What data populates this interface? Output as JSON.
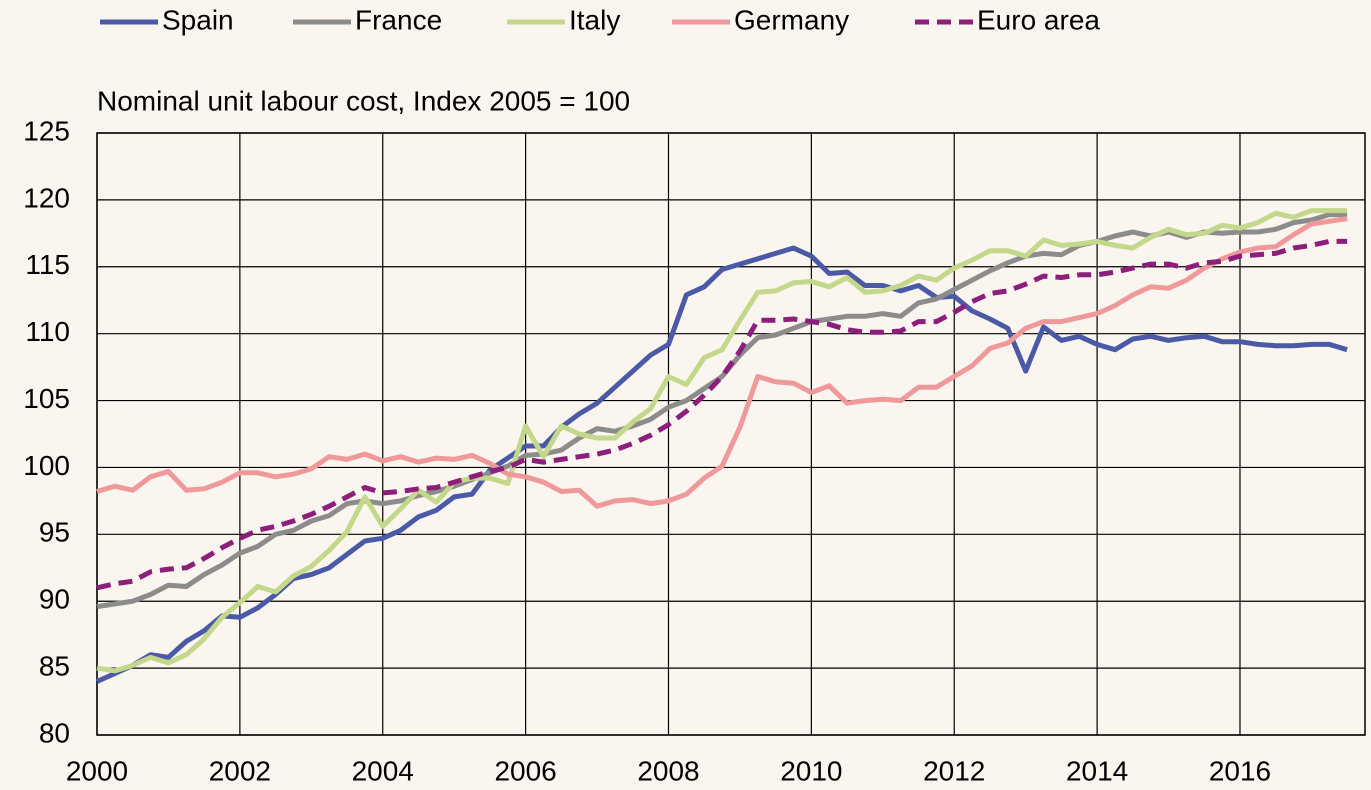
{
  "chart_data": {
    "type": "line",
    "y_axis_label": "Nominal unit labour cost, Index 2005 = 100",
    "x": [
      2000,
      2000.25,
      2000.5,
      2000.75,
      2001,
      2001.25,
      2001.5,
      2001.75,
      2002,
      2002.25,
      2002.5,
      2002.75,
      2003,
      2003.25,
      2003.5,
      2003.75,
      2004,
      2004.25,
      2004.5,
      2004.75,
      2005,
      2005.25,
      2005.5,
      2005.75,
      2006,
      2006.25,
      2006.5,
      2006.75,
      2007,
      2007.25,
      2007.5,
      2007.75,
      2008,
      2008.25,
      2008.5,
      2008.75,
      2009,
      2009.25,
      2009.5,
      2009.75,
      2010,
      2010.25,
      2010.5,
      2010.75,
      2011,
      2011.25,
      2011.5,
      2011.75,
      2012,
      2012.25,
      2012.5,
      2012.75,
      2013,
      2013.25,
      2013.5,
      2013.75,
      2014,
      2014.25,
      2014.5,
      2014.75,
      2015,
      2015.25,
      2015.5,
      2015.75,
      2016,
      2016.25,
      2016.5,
      2016.75,
      2017,
      2017.25,
      2017.5
    ],
    "series": [
      {
        "name": "Spain",
        "color": "#4b5aa6",
        "dashed": false,
        "values": [
          84.0,
          84.6,
          85.2,
          86.0,
          85.8,
          87.0,
          87.8,
          88.9,
          88.8,
          89.5,
          90.5,
          91.7,
          92.0,
          92.5,
          93.5,
          94.5,
          94.7,
          95.3,
          96.3,
          96.8,
          97.8,
          98.0,
          99.8,
          100.7,
          101.6,
          101.6,
          103.0,
          104.0,
          104.8,
          106.0,
          107.2,
          108.4,
          109.2,
          112.9,
          113.5,
          114.8,
          115.2,
          115.6,
          116.0,
          116.4,
          115.8,
          114.5,
          114.6,
          113.6,
          113.6,
          113.2,
          113.6,
          112.7,
          112.8,
          111.7,
          111.1,
          110.4,
          107.2,
          110.5,
          109.5,
          109.8,
          109.2,
          108.8,
          109.6,
          109.8,
          109.5,
          109.7,
          109.8,
          109.4,
          109.4,
          109.2,
          109.1,
          109.1,
          109.2,
          109.2,
          108.8
        ]
      },
      {
        "name": "France",
        "color": "#8c8c8c",
        "dashed": false,
        "values": [
          89.6,
          89.8,
          90.0,
          90.5,
          91.2,
          91.1,
          92.0,
          92.7,
          93.6,
          94.1,
          95.0,
          95.3,
          96.0,
          96.4,
          97.3,
          97.5,
          97.3,
          97.5,
          97.9,
          98.2,
          98.6,
          99.1,
          99.6,
          100.1,
          100.9,
          101.0,
          101.3,
          102.2,
          102.9,
          102.7,
          103.1,
          103.6,
          104.5,
          105.0,
          105.9,
          106.8,
          108.4,
          109.7,
          109.9,
          110.4,
          110.9,
          111.1,
          111.3,
          111.3,
          111.5,
          111.3,
          112.3,
          112.6,
          113.3,
          114.0,
          114.7,
          115.3,
          115.8,
          116.0,
          115.9,
          116.6,
          116.9,
          117.3,
          117.6,
          117.3,
          117.6,
          117.2,
          117.6,
          117.5,
          117.6,
          117.6,
          117.8,
          118.3,
          118.5,
          118.9,
          118.9
        ]
      },
      {
        "name": "Italy",
        "color": "#c3d88a",
        "dashed": false,
        "values": [
          85.0,
          84.8,
          85.2,
          85.8,
          85.4,
          86.0,
          87.2,
          88.8,
          89.9,
          91.1,
          90.7,
          91.9,
          92.6,
          93.8,
          95.2,
          97.8,
          95.6,
          96.9,
          98.3,
          97.4,
          98.9,
          99.2,
          99.2,
          98.8,
          103.1,
          100.8,
          103.1,
          102.5,
          102.2,
          102.2,
          103.4,
          104.4,
          106.8,
          106.2,
          108.2,
          108.8,
          111.0,
          113.1,
          113.2,
          113.8,
          113.9,
          113.5,
          114.2,
          113.1,
          113.2,
          113.6,
          114.3,
          114.0,
          114.9,
          115.5,
          116.2,
          116.2,
          115.8,
          117.0,
          116.6,
          116.7,
          116.9,
          116.6,
          116.4,
          117.2,
          117.8,
          117.4,
          117.5,
          118.1,
          117.9,
          118.3,
          119.0,
          118.7,
          119.2,
          119.2,
          119.2
        ]
      },
      {
        "name": "Germany",
        "color": "#f0999a",
        "dashed": false,
        "values": [
          98.2,
          98.6,
          98.3,
          99.3,
          99.7,
          98.3,
          98.4,
          98.9,
          99.6,
          99.6,
          99.3,
          99.5,
          99.9,
          100.8,
          100.6,
          101.0,
          100.5,
          100.8,
          100.4,
          100.7,
          100.6,
          100.9,
          100.3,
          99.5,
          99.3,
          98.9,
          98.2,
          98.3,
          97.1,
          97.5,
          97.6,
          97.3,
          97.5,
          98.0,
          99.2,
          100.1,
          103.0,
          106.8,
          106.4,
          106.3,
          105.6,
          106.1,
          104.8,
          105.0,
          105.1,
          105.0,
          106.0,
          106.0,
          106.8,
          107.6,
          108.9,
          109.3,
          110.4,
          110.9,
          110.9,
          111.2,
          111.5,
          112.1,
          112.9,
          113.5,
          113.4,
          114.0,
          114.9,
          115.6,
          116.1,
          116.4,
          116.5,
          117.4,
          118.2,
          118.4,
          118.6
        ]
      },
      {
        "name": "Euro area",
        "color": "#8c1e7c",
        "dashed": true,
        "values": [
          91.0,
          91.3,
          91.5,
          92.2,
          92.4,
          92.5,
          93.2,
          94.0,
          94.7,
          95.3,
          95.6,
          96.0,
          96.5,
          97.1,
          97.8,
          98.5,
          98.1,
          98.2,
          98.4,
          98.5,
          98.9,
          99.3,
          99.7,
          100.0,
          100.6,
          100.4,
          100.6,
          100.8,
          101.0,
          101.3,
          101.8,
          102.4,
          103.2,
          104.2,
          105.4,
          106.8,
          108.7,
          111.0,
          111.0,
          111.1,
          110.9,
          110.7,
          110.3,
          110.1,
          110.1,
          110.2,
          110.9,
          110.9,
          111.6,
          112.4,
          113.0,
          113.2,
          113.7,
          114.3,
          114.2,
          114.4,
          114.4,
          114.6,
          114.9,
          115.2,
          115.2,
          114.9,
          115.3,
          115.4,
          115.8,
          115.9,
          116.0,
          116.4,
          116.6,
          116.9,
          116.9
        ]
      }
    ],
    "xlim": [
      2000,
      2017.75
    ],
    "xticks": [
      2000,
      2002,
      2004,
      2006,
      2008,
      2010,
      2012,
      2014,
      2016
    ],
    "ylim": [
      80,
      125
    ],
    "yticks": [
      80,
      85,
      90,
      95,
      100,
      105,
      110,
      115,
      120,
      125
    ],
    "grid": true,
    "legend": "top"
  }
}
